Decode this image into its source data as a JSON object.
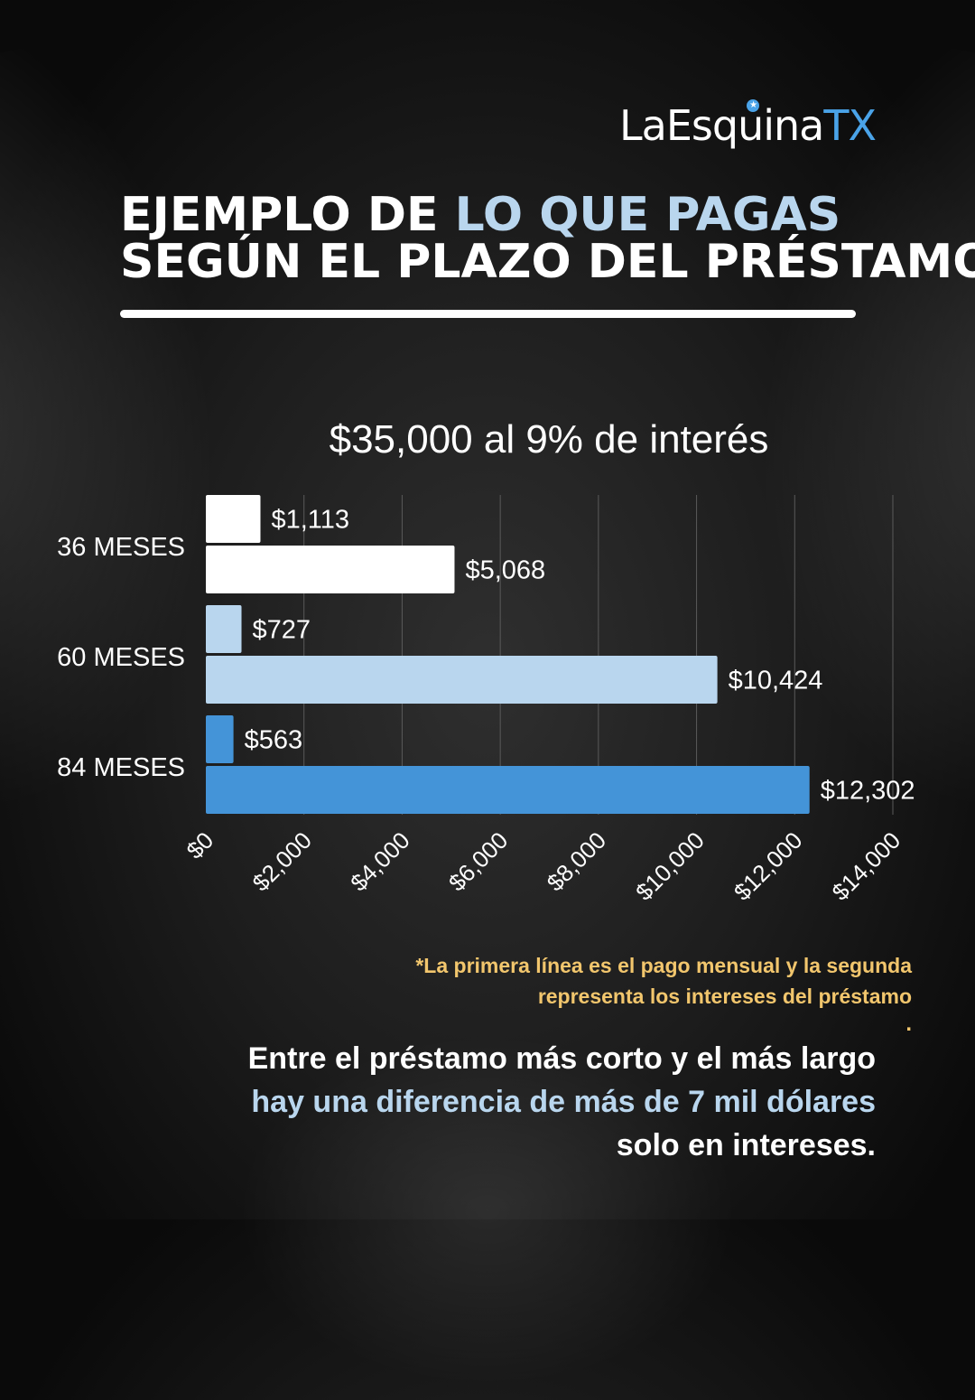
{
  "brand": {
    "logo_main": "LaEsquina",
    "logo_tx": "TX"
  },
  "header": {
    "title_line1_a": "EJEMPLO DE ",
    "title_line1_b": "LO QUE PAGAS",
    "title_line2": "SEGÚN EL PLAZO DEL PRÉSTAMO"
  },
  "colors": {
    "background": "#141414",
    "highlight": "#b9d6ee",
    "note": "#f2c66d",
    "brand_blue": "#4aa3e8"
  },
  "chart_data": {
    "type": "bar",
    "orientation": "horizontal",
    "title": "$35,000 al 9% de interés",
    "categories": [
      "36 MESES",
      "60 MESES",
      "84 MESES"
    ],
    "series": [
      {
        "values": [
          1113,
          727,
          563
        ]
      },
      {
        "values": [
          5068,
          10424,
          12302
        ]
      }
    ],
    "data_labels": [
      [
        "$1,113",
        "$5,068"
      ],
      [
        "$727",
        "$10,424"
      ],
      [
        "$563",
        "$12,302"
      ]
    ],
    "bar_colors": [
      "#ffffff",
      "#b9d6ee",
      "#4494d8"
    ],
    "xlim": [
      0,
      14000
    ],
    "x_ticks": [
      0,
      2000,
      4000,
      6000,
      8000,
      10000,
      12000,
      14000
    ],
    "x_tick_labels": [
      "$0",
      "$2,000",
      "$4,000",
      "$6,000",
      "$8,000",
      "$10,000",
      "$12,000",
      "$14,000"
    ],
    "grid": "vertical",
    "legend": "none"
  },
  "note": {
    "line1": "*La primera línea es el pago mensual y la segunda",
    "line2": "representa los intereses del préstamo",
    "dot": "."
  },
  "footer": {
    "line1": "Entre el préstamo más corto y el más largo",
    "line2": "hay una diferencia de más de 7 mil dólares",
    "line3": "solo en intereses."
  }
}
